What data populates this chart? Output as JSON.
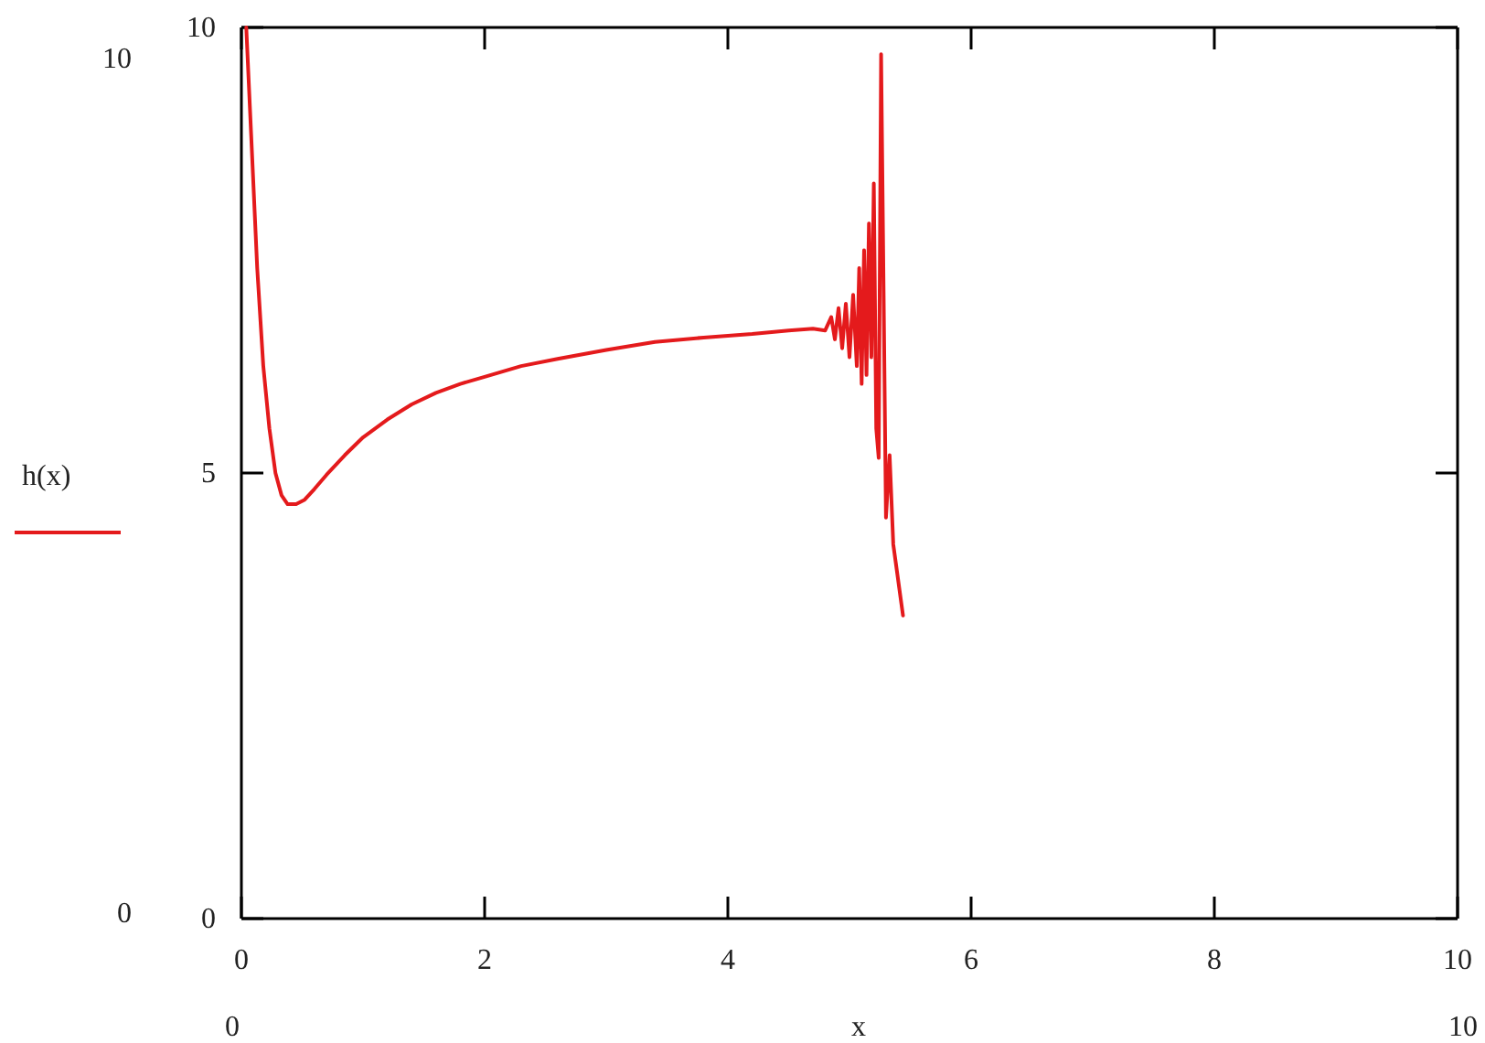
{
  "chart_data": {
    "type": "line",
    "xlabel": "x",
    "xlim": [
      0,
      10
    ],
    "xticks": [
      0,
      2,
      4,
      6,
      8,
      10
    ],
    "ylim": [
      0,
      10
    ],
    "yticks": [
      0,
      5,
      10
    ],
    "legend": "left",
    "grid": false,
    "annotations": [
      "10",
      "0",
      "0",
      "10"
    ],
    "series": [
      {
        "name": "h(x)",
        "color": "#e41a1c",
        "x": [
          0.04,
          0.08,
          0.13,
          0.18,
          0.23,
          0.28,
          0.33,
          0.38,
          0.45,
          0.52,
          0.6,
          0.7,
          0.85,
          1.0,
          1.2,
          1.4,
          1.6,
          1.8,
          2.0,
          2.3,
          2.6,
          3.0,
          3.4,
          3.8,
          4.2,
          4.5,
          4.7,
          4.8,
          4.85,
          4.88,
          4.91,
          4.94,
          4.97,
          5.0,
          5.03,
          5.06,
          5.08,
          5.1,
          5.12,
          5.14,
          5.16,
          5.18,
          5.2,
          5.22,
          5.24,
          5.26,
          5.28,
          5.3,
          5.33,
          5.36,
          5.39,
          5.42,
          5.44
        ],
        "values": [
          10,
          8.8,
          7.3,
          6.2,
          5.5,
          5.0,
          4.75,
          4.65,
          4.65,
          4.7,
          4.82,
          4.98,
          5.2,
          5.4,
          5.6,
          5.77,
          5.9,
          6.0,
          6.08,
          6.2,
          6.28,
          6.38,
          6.47,
          6.52,
          6.56,
          6.6,
          6.62,
          6.6,
          6.75,
          6.5,
          6.85,
          6.4,
          6.9,
          6.3,
          7.0,
          6.2,
          7.3,
          6.0,
          7.5,
          6.1,
          7.8,
          6.3,
          8.25,
          5.5,
          5.17,
          9.7,
          7.1,
          4.5,
          5.2,
          4.2,
          3.9,
          3.6,
          3.4
        ]
      }
    ]
  }
}
